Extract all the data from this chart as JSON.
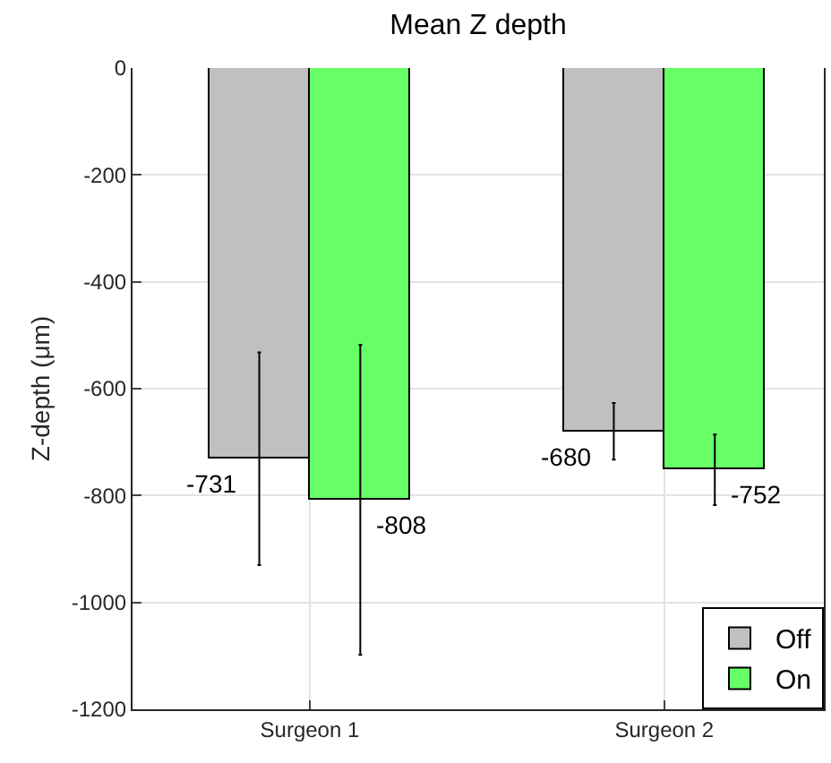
{
  "chart_data": {
    "type": "bar",
    "title": "Mean Z depth",
    "ylabel": "Z-depth (μm)",
    "categories": [
      "Surgeon 1",
      "Surgeon 2"
    ],
    "series": [
      {
        "name": "Off",
        "color": "#c0c0c0",
        "values": [
          -731,
          -680
        ],
        "errors": [
          199,
          53
        ]
      },
      {
        "name": "On",
        "color": "#66ff66",
        "values": [
          -808,
          -752
        ],
        "errors": [
          290,
          66
        ]
      }
    ],
    "ylim": [
      -1200,
      0
    ],
    "yticks": [
      -1200,
      -1000,
      -800,
      -600,
      -400,
      -200,
      0
    ],
    "grid": true,
    "legend": "bottom right",
    "data_labels": true
  }
}
